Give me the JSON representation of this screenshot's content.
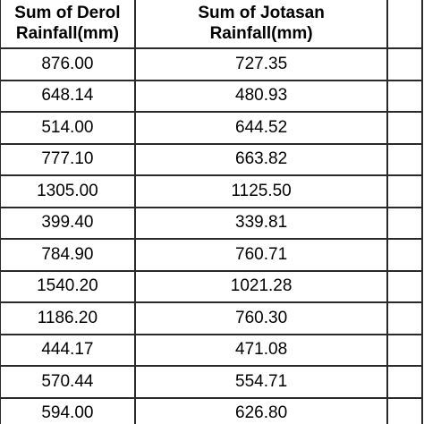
{
  "table": {
    "headers": [
      [
        "Sum of Derol",
        "Rainfall(mm)"
      ],
      [
        "Sum of Jotasan",
        "Rainfall(mm)"
      ],
      [
        "",
        ""
      ]
    ],
    "rows": [
      [
        "876.00",
        "727.35",
        ""
      ],
      [
        "648.14",
        "480.93",
        ""
      ],
      [
        "514.00",
        "644.52",
        ""
      ],
      [
        "777.10",
        "663.82",
        ""
      ],
      [
        "1305.00",
        "1125.50",
        ""
      ],
      [
        "399.40",
        "339.81",
        ""
      ],
      [
        "784.90",
        "760.71",
        ""
      ],
      [
        "1540.20",
        "1021.28",
        ""
      ],
      [
        "1186.20",
        "760.30",
        ""
      ],
      [
        "444.17",
        "471.08",
        ""
      ],
      [
        "570.44",
        "554.71",
        ""
      ],
      [
        "594.00",
        "626.80",
        ""
      ]
    ]
  }
}
